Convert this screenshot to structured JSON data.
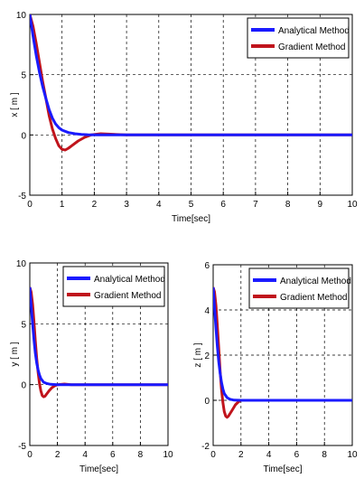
{
  "chart_data": [
    {
      "type": "line",
      "xlabel": "Time[sec]",
      "ylabel": "x [ m ]",
      "xlim": [
        0,
        10
      ],
      "ylim": [
        -5,
        10
      ],
      "xticks": [
        0,
        1,
        2,
        3,
        4,
        5,
        6,
        7,
        8,
        9,
        10
      ],
      "yticks": [
        -5,
        0,
        5,
        10
      ],
      "grid": true,
      "legend_position": "top-right",
      "series": [
        {
          "name": "Analytical Method",
          "color": "#1a1aff",
          "x": [
            0,
            0.1,
            0.2,
            0.3,
            0.4,
            0.5,
            0.6,
            0.7,
            0.8,
            0.9,
            1.0,
            1.2,
            1.4,
            1.6,
            1.8,
            2.0,
            3.0,
            10
          ],
          "y": [
            10,
            8.2,
            6.6,
            5.2,
            4.0,
            3.0,
            2.1,
            1.4,
            0.9,
            0.6,
            0.4,
            0.2,
            0.1,
            0.05,
            0.02,
            0,
            0,
            0
          ]
        },
        {
          "name": "Gradient Method",
          "color": "#c0141c",
          "x": [
            0,
            0.1,
            0.2,
            0.3,
            0.4,
            0.5,
            0.6,
            0.7,
            0.8,
            0.9,
            1.0,
            1.1,
            1.2,
            1.3,
            1.5,
            1.7,
            1.9,
            2.2,
            3.0,
            10
          ],
          "y": [
            10,
            9.0,
            7.6,
            6.0,
            4.4,
            3.0,
            1.6,
            0.5,
            -0.3,
            -0.9,
            -1.2,
            -1.25,
            -1.1,
            -0.9,
            -0.5,
            -0.2,
            0,
            0.1,
            0,
            0
          ]
        }
      ]
    },
    {
      "type": "line",
      "xlabel": "Time[sec]",
      "ylabel": "y [ m ]",
      "xlim": [
        0,
        10
      ],
      "ylim": [
        -5,
        10
      ],
      "xticks": [
        0,
        2,
        4,
        6,
        8,
        10
      ],
      "yticks": [
        -5,
        0,
        5,
        10
      ],
      "grid": true,
      "legend_position": "top-right",
      "series": [
        {
          "name": "Analytical Method",
          "color": "#1a1aff",
          "x": [
            0,
            0.1,
            0.2,
            0.3,
            0.4,
            0.5,
            0.6,
            0.7,
            0.8,
            1.0,
            1.2,
            1.5,
            2.0,
            10
          ],
          "y": [
            8,
            6.5,
            5.0,
            3.7,
            2.6,
            1.8,
            1.2,
            0.8,
            0.5,
            0.2,
            0.1,
            0.03,
            0,
            0
          ]
        },
        {
          "name": "Gradient Method",
          "color": "#c0141c",
          "x": [
            0,
            0.1,
            0.2,
            0.3,
            0.4,
            0.5,
            0.6,
            0.7,
            0.8,
            0.9,
            1.0,
            1.1,
            1.2,
            1.4,
            1.6,
            1.8,
            2.0,
            2.5,
            3.0,
            10
          ],
          "y": [
            8,
            7.6,
            6.6,
            5.2,
            3.6,
            2.2,
            1.0,
            0.1,
            -0.5,
            -0.9,
            -1.0,
            -0.95,
            -0.8,
            -0.5,
            -0.25,
            -0.1,
            0,
            0.05,
            0,
            0
          ]
        }
      ]
    },
    {
      "type": "line",
      "xlabel": "Time[sec]",
      "ylabel": "z [ m ]",
      "xlim": [
        0,
        10
      ],
      "ylim": [
        -2,
        6
      ],
      "xticks": [
        0,
        2,
        4,
        6,
        8,
        10
      ],
      "yticks": [
        -2,
        0,
        2,
        4,
        6
      ],
      "grid": true,
      "legend_position": "top-right",
      "series": [
        {
          "name": "Analytical Method",
          "color": "#1a1aff",
          "x": [
            0,
            0.1,
            0.2,
            0.3,
            0.4,
            0.5,
            0.6,
            0.7,
            0.8,
            1.0,
            1.2,
            1.5,
            2.0,
            10
          ],
          "y": [
            5,
            4.1,
            3.2,
            2.4,
            1.7,
            1.2,
            0.8,
            0.5,
            0.3,
            0.12,
            0.05,
            0.01,
            0,
            0
          ]
        },
        {
          "name": "Gradient Method",
          "color": "#c0141c",
          "x": [
            0,
            0.1,
            0.2,
            0.3,
            0.4,
            0.5,
            0.6,
            0.7,
            0.8,
            0.9,
            1.0,
            1.1,
            1.2,
            1.4,
            1.6,
            1.8,
            2.0,
            2.5,
            10
          ],
          "y": [
            5,
            4.8,
            4.2,
            3.3,
            2.3,
            1.3,
            0.5,
            -0.1,
            -0.5,
            -0.7,
            -0.75,
            -0.7,
            -0.6,
            -0.4,
            -0.2,
            -0.08,
            0,
            0,
            0
          ]
        }
      ]
    }
  ]
}
